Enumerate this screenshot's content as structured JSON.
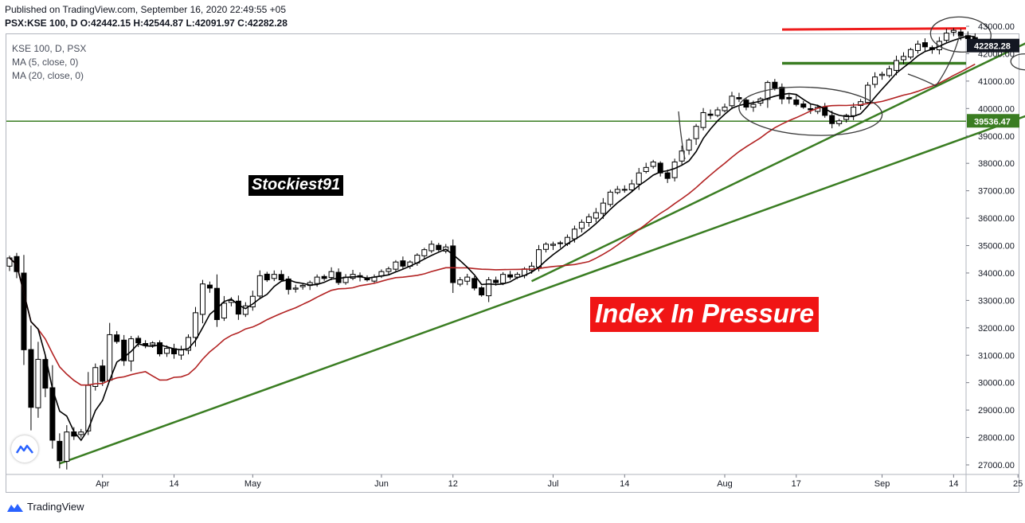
{
  "header": {
    "published": "Published on TradingView.com, September 16, 2020 22:49:55 +05",
    "ohlc_line": "PSX:KSE 100, D O:42442.15 H:42544.87 L:42091.97 C:42282.28"
  },
  "legend": {
    "symbol": "KSE 100, D, PSX",
    "ma5": "MA (5, close, 0)",
    "ma20": "MA (20, close, 0)"
  },
  "watermark_text": "Stockiest91",
  "banner_text": "Index In Pressure",
  "footer": {
    "brand": "TradingView"
  },
  "colors": {
    "candle_up": "#ffffff",
    "candle_down": "#000000",
    "ma5": "#000000",
    "ma20": "#b22222",
    "trendline": "#3a7d22",
    "resistance": "#ee1c1c",
    "price_label_bg": "#131722",
    "support_label_bg": "#3a7d22"
  },
  "chart_data": {
    "type": "candlestick",
    "symbol": "PSX:KSE 100",
    "interval": "D",
    "ylim": [
      26700,
      43500
    ],
    "y_ticks": [
      27000,
      28000,
      29000,
      30000,
      31000,
      32000,
      33000,
      34000,
      35000,
      36000,
      37000,
      38000,
      39000,
      40000,
      41000,
      42000,
      43000
    ],
    "y_tick_labels": [
      "27000.00",
      "28000.00",
      "29000.00",
      "30000.00",
      "31000.00",
      "32000.00",
      "33000.00",
      "34000.00",
      "35000.00",
      "36000.00",
      "37000.00",
      "38000.00",
      "39000.00",
      "40000.00",
      "41000.00",
      "42000.00",
      "43000.00"
    ],
    "x_tick_labels": [
      {
        "label": "Apr",
        "bar": 13
      },
      {
        "label": "14",
        "bar": 23
      },
      {
        "label": "May",
        "bar": 34
      },
      {
        "label": "Jun",
        "bar": 52
      },
      {
        "label": "12",
        "bar": 62
      },
      {
        "label": "Jul",
        "bar": 76
      },
      {
        "label": "14",
        "bar": 86
      },
      {
        "label": "Aug",
        "bar": 100
      },
      {
        "label": "17",
        "bar": 110
      },
      {
        "label": "Sep",
        "bar": 122
      },
      {
        "label": "14",
        "bar": 132
      },
      {
        "label": "25",
        "bar": 141
      }
    ],
    "bar_count": 136,
    "closes": [
      34550,
      34050,
      31200,
      29100,
      30850,
      29800,
      27900,
      27150,
      28200,
      28050,
      28200,
      29900,
      30550,
      30050,
      31750,
      31500,
      30800,
      31600,
      31450,
      31350,
      31450,
      31050,
      31250,
      31050,
      31200,
      31650,
      32550,
      33600,
      33450,
      32300,
      32900,
      33000,
      32500,
      32800,
      33150,
      33900,
      33750,
      33950,
      33750,
      33400,
      33450,
      33550,
      33650,
      33850,
      33800,
      34050,
      33650,
      33850,
      33950,
      33850,
      33750,
      33850,
      34050,
      34150,
      34400,
      34250,
      34400,
      34650,
      34850,
      35050,
      34850,
      34950,
      33650,
      33750,
      33850,
      33450,
      33200,
      33750,
      33650,
      33950,
      33850,
      33950,
      34150,
      34250,
      34850,
      35050,
      35050,
      35100,
      35300,
      35600,
      35850,
      36050,
      36200,
      36550,
      36950,
      37050,
      37050,
      37250,
      37650,
      37850,
      38050,
      37650,
      37450,
      38050,
      38450,
      38850,
      39350,
      39850,
      39750,
      39950,
      40050,
      40450,
      40350,
      40050,
      40150,
      40350,
      40950,
      40750,
      40350,
      40350,
      40150,
      40050,
      39950,
      40050,
      39750,
      39450,
      39550,
      39750,
      40050,
      40250,
      40850,
      41150,
      41250,
      41450,
      41750,
      41900,
      42150,
      42350,
      42250,
      42150,
      42450,
      42750,
      42850,
      42650,
      42550,
      42282
    ],
    "ma5": {
      "period": 5,
      "name": "MA (5, close, 0)"
    },
    "ma20": {
      "period": 20,
      "name": "MA (20, close, 0)"
    },
    "last_price": 42282.28,
    "last_price_label": "42282.28",
    "support_level": 39536.47,
    "support_label": "39536.47",
    "resistance_level": 42880,
    "support_zone_level": 41650,
    "trendlines": [
      {
        "name": "long-trendline",
        "from": {
          "bar": 7,
          "price": 27050
        },
        "to": {
          "bar": 145,
          "price": 40000
        }
      },
      {
        "name": "steep-trendline",
        "from": {
          "bar": 73,
          "price": 33700
        },
        "to": {
          "bar": 147,
          "price": 43000
        }
      }
    ],
    "annotations": [
      {
        "type": "ellipse",
        "name": "consolidation-circle",
        "center": {
          "bar": 112,
          "price": 39900
        }
      },
      {
        "type": "ellipse",
        "name": "top-circle",
        "center": {
          "bar": 133,
          "price": 42700
        }
      },
      {
        "type": "ellipse",
        "name": "small-circle",
        "center": {
          "bar": 142,
          "price": 41700
        }
      }
    ]
  }
}
